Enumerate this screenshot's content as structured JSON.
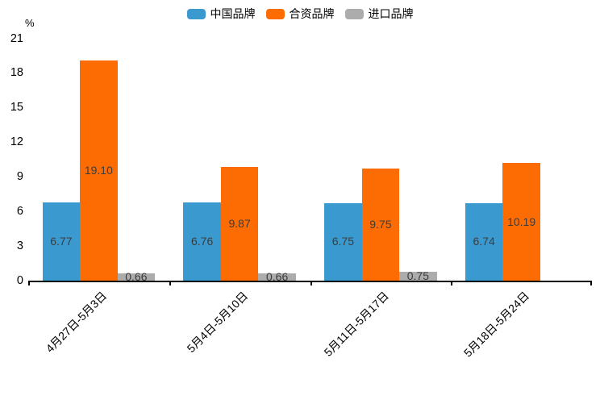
{
  "chart_data": {
    "type": "bar",
    "title": "",
    "ylabel": "%",
    "xlabel": "",
    "grid": false,
    "legend_position": "top",
    "ylim": [
      0,
      21
    ],
    "yticks": [
      0,
      3,
      6,
      9,
      12,
      15,
      18,
      21
    ],
    "categories": [
      "4月27日-5月3日",
      "5月4日-5月10日",
      "5月11日-5月17日",
      "5月18日-5月24日"
    ],
    "series": [
      {
        "key": "china-brand",
        "name": "中国品牌",
        "color": "#3A9AD0",
        "values": [
          6.77,
          6.76,
          6.75,
          6.74
        ]
      },
      {
        "key": "joint-venture-brand",
        "name": "合资品牌",
        "color": "#FD6C03",
        "values": [
          19.1,
          9.87,
          9.75,
          10.19
        ]
      },
      {
        "key": "import-brand",
        "name": "进口品牌",
        "color": "#ACACAC",
        "values": [
          0.66,
          0.66,
          0.75,
          null
        ]
      }
    ]
  }
}
